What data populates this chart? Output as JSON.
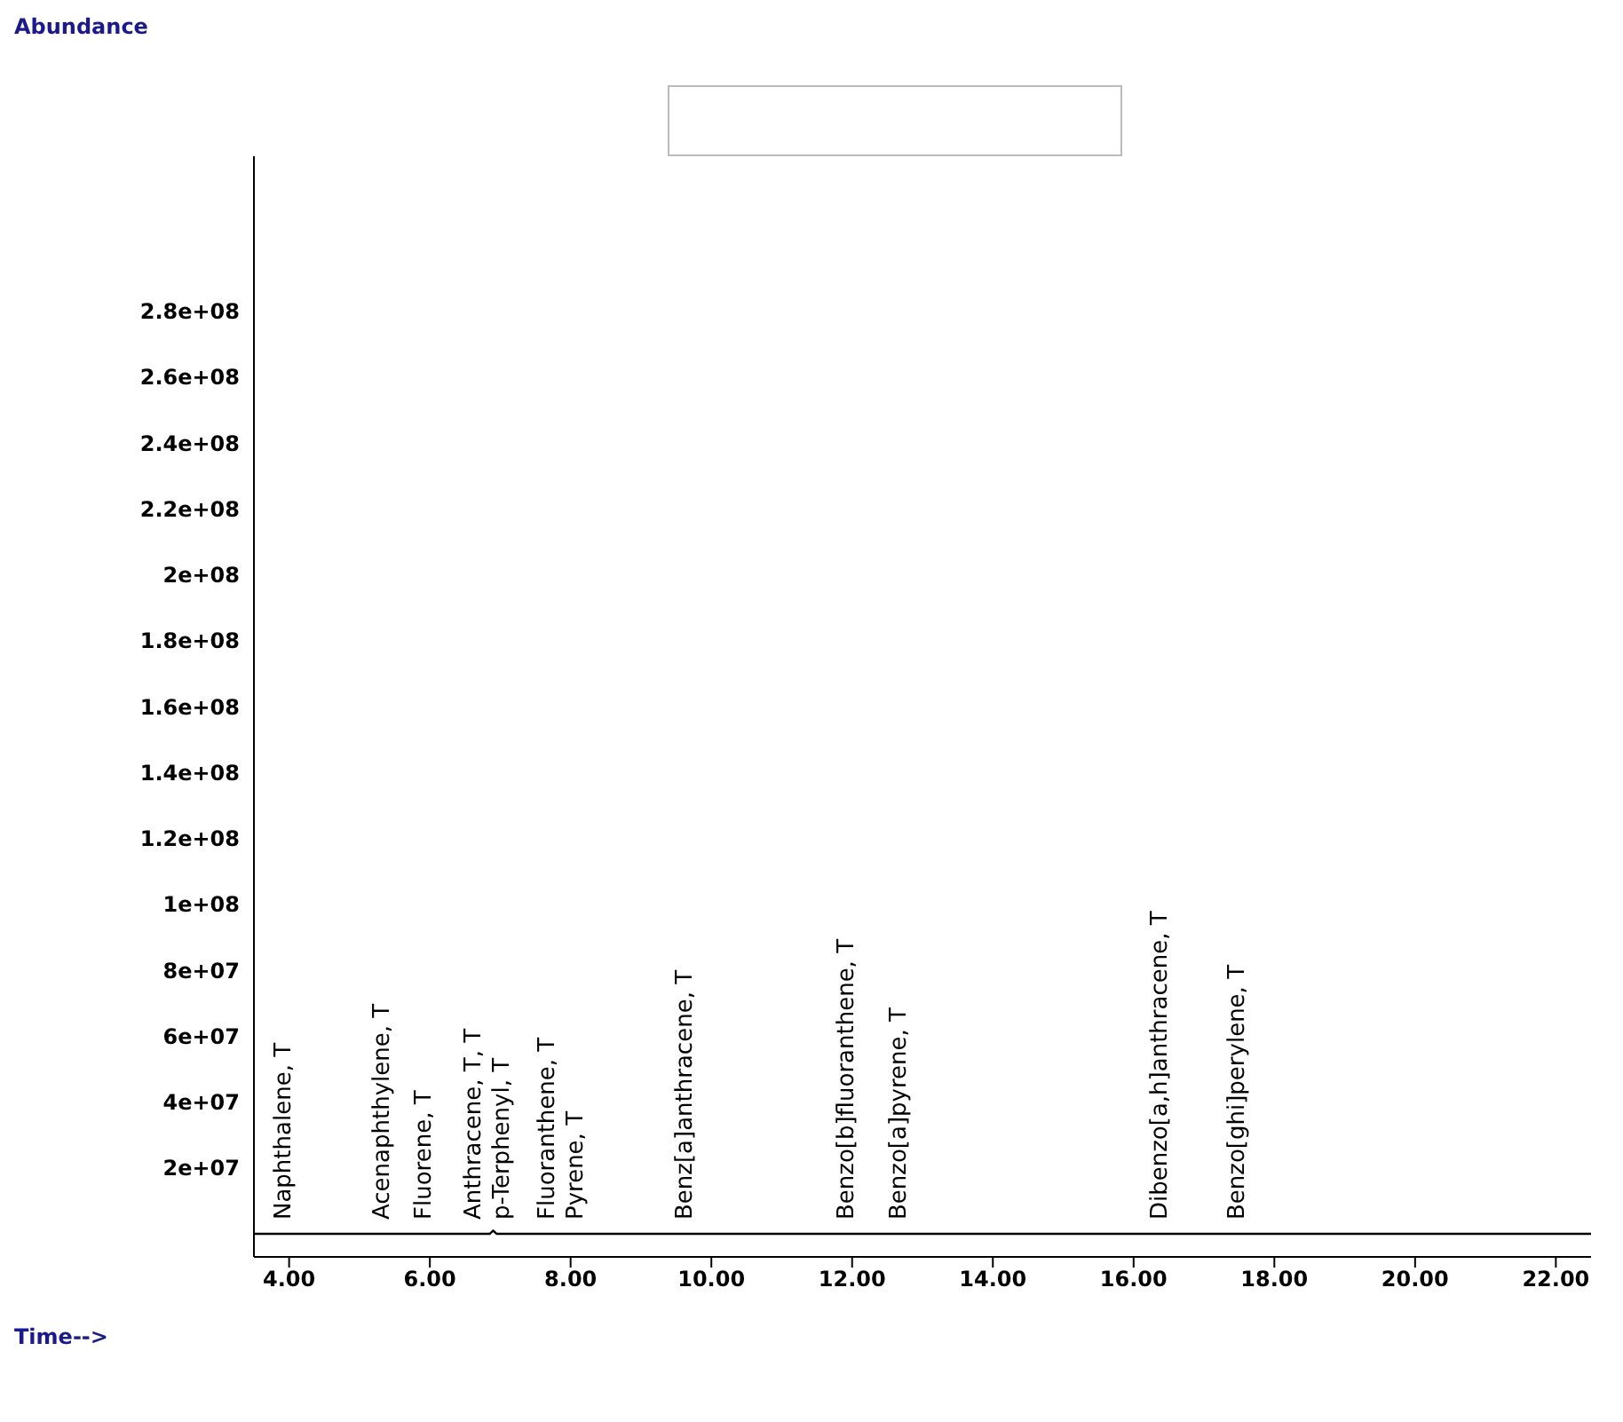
{
  "chart_data": {
    "type": "line",
    "xlabel": "Time-->",
    "series": [
      {
        "color": "#000000",
        "x": [
          3.5,
          6.85,
          6.9,
          6.95,
          22.5
        ],
        "values": [
          0,
          0,
          1000000,
          0,
          0
        ]
      }
    ],
    "xlim": [
      3.5,
      22.5
    ],
    "xticks": [
      {
        "value": 4,
        "label": "4.00"
      },
      {
        "value": 6,
        "label": "6.00"
      },
      {
        "value": 8,
        "label": "8.00"
      },
      {
        "value": 10,
        "label": "10.00"
      },
      {
        "value": 12,
        "label": "12.00"
      },
      {
        "value": 14,
        "label": "14.00"
      },
      {
        "value": 16,
        "label": "16.00"
      },
      {
        "value": 18,
        "label": "18.00"
      },
      {
        "value": 20,
        "label": "20.00"
      },
      {
        "value": 22,
        "label": "22.00"
      }
    ],
    "ylim": [
      -7000000,
      327000000
    ],
    "yticks": [
      {
        "value": 20000000,
        "label": "2e+07"
      },
      {
        "value": 40000000,
        "label": "4e+07"
      },
      {
        "value": 60000000,
        "label": "6e+07"
      },
      {
        "value": 80000000,
        "label": "8e+07"
      },
      {
        "value": 100000000,
        "label": "1e+08"
      },
      {
        "value": 120000000,
        "label": "1.2e+08"
      },
      {
        "value": 140000000,
        "label": "1.4e+08"
      },
      {
        "value": 160000000,
        "label": "1.6e+08"
      },
      {
        "value": 180000000,
        "label": "1.8e+08"
      },
      {
        "value": 200000000,
        "label": "2e+08"
      },
      {
        "value": 220000000,
        "label": "2.2e+08"
      },
      {
        "value": 240000000,
        "label": "2.4e+08"
      },
      {
        "value": 260000000,
        "label": "2.6e+08"
      },
      {
        "value": 280000000,
        "label": "2.8e+08"
      }
    ],
    "grid": false,
    "marker": "none",
    "line_style": "solid",
    "annotations": [
      "Abundance",
      {
        "text": "Naphthalene, T",
        "x": 3.9,
        "y": 0
      },
      {
        "text": "Acenaphthylene, T",
        "x": 5.3,
        "y": 0
      },
      {
        "text": "Fluorene, T",
        "x": 5.9,
        "y": 0
      },
      {
        "text": "Anthracene, T, T",
        "x": 6.6,
        "y": 0
      },
      {
        "text": "p-Terphenyl, T",
        "x": 7.0,
        "y": 0
      },
      {
        "text": "Fluoranthene, T",
        "x": 7.65,
        "y": 0
      },
      {
        "text": "Pyrene, T",
        "x": 8.05,
        "y": 0
      },
      {
        "text": "Benz[a]anthracene, T",
        "x": 9.6,
        "y": 0
      },
      {
        "text": "Benzo[b]fluoranthene, T",
        "x": 11.9,
        "y": 0
      },
      {
        "text": "Benzo[a]pyrene, T",
        "x": 12.65,
        "y": 0
      },
      {
        "text": "Dibenzo[a,h]anthracene, T",
        "x": 16.35,
        "y": 0
      },
      {
        "text": "Benzo[ghi]perylene, T",
        "x": 17.45,
        "y": 0
      }
    ]
  }
}
